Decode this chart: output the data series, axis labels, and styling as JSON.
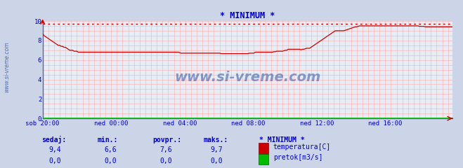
{
  "title": "* MINIMUM *",
  "title_color": "#0000cc",
  "bg_color": "#ccd5e8",
  "plot_bg_color": "#e8edf5",
  "grid_color": "#ffaaaa",
  "x_labels": [
    "sob 20:00",
    "ned 00:00",
    "ned 04:00",
    "ned 08:00",
    "ned 12:00",
    "ned 16:00"
  ],
  "x_ticks_pos": [
    0,
    48,
    96,
    144,
    192,
    240
  ],
  "total_points": 288,
  "ylim": [
    0,
    10
  ],
  "yticks": [
    0,
    2,
    4,
    6,
    8,
    10
  ],
  "line_color": "#cc0000",
  "line_color2": "#00bb00",
  "dashed_line_color": "#cc0000",
  "dashed_line_y": 9.7,
  "watermark": "www.si-vreme.com",
  "watermark_color": "#3355aa",
  "sidebar_text": "www.si-vreme.com",
  "footer_color": "#0000cc",
  "footer_labels": [
    "sedaj:",
    "min.:",
    "povpr.:",
    "maks.:"
  ],
  "footer_values_temp": [
    "9,4",
    "6,6",
    "7,6",
    "9,7"
  ],
  "footer_values_flow": [
    "0,0",
    "0,0",
    "0,0",
    "0,0"
  ],
  "legend_title": "* MINIMUM *",
  "legend_temp": "temperatura[C]",
  "legend_flow": "pretok[m3/s]",
  "temp_data": [
    8.7,
    8.5,
    8.4,
    8.3,
    8.2,
    8.1,
    8.0,
    7.9,
    7.8,
    7.7,
    7.6,
    7.5,
    7.5,
    7.4,
    7.4,
    7.3,
    7.3,
    7.2,
    7.1,
    7.0,
    7.0,
    7.0,
    6.9,
    6.9,
    6.9,
    6.8,
    6.8,
    6.8,
    6.8,
    6.8,
    6.8,
    6.8,
    6.8,
    6.8,
    6.8,
    6.8,
    6.8,
    6.8,
    6.8,
    6.8,
    6.8,
    6.8,
    6.8,
    6.8,
    6.8,
    6.8,
    6.8,
    6.8,
    6.8,
    6.8,
    6.8,
    6.8,
    6.8,
    6.8,
    6.8,
    6.8,
    6.8,
    6.8,
    6.8,
    6.8,
    6.8,
    6.8,
    6.8,
    6.8,
    6.8,
    6.8,
    6.8,
    6.8,
    6.8,
    6.8,
    6.8,
    6.8,
    6.8,
    6.8,
    6.8,
    6.8,
    6.8,
    6.8,
    6.8,
    6.8,
    6.8,
    6.8,
    6.8,
    6.8,
    6.8,
    6.8,
    6.8,
    6.8,
    6.8,
    6.8,
    6.8,
    6.8,
    6.8,
    6.8,
    6.8,
    6.8,
    6.75,
    6.7,
    6.7,
    6.7,
    6.7,
    6.7,
    6.7,
    6.7,
    6.7,
    6.7,
    6.7,
    6.7,
    6.7,
    6.7,
    6.7,
    6.7,
    6.7,
    6.7,
    6.7,
    6.7,
    6.7,
    6.7,
    6.7,
    6.7,
    6.7,
    6.7,
    6.7,
    6.7,
    6.7,
    6.65,
    6.65,
    6.65,
    6.65,
    6.65,
    6.65,
    6.65,
    6.65,
    6.65,
    6.65,
    6.65,
    6.65,
    6.65,
    6.65,
    6.65,
    6.65,
    6.65,
    6.65,
    6.65,
    6.65,
    6.7,
    6.7,
    6.7,
    6.7,
    6.8,
    6.8,
    6.8,
    6.8,
    6.8,
    6.8,
    6.8,
    6.8,
    6.8,
    6.8,
    6.8,
    6.8,
    6.8,
    6.85,
    6.85,
    6.9,
    6.9,
    6.9,
    6.9,
    6.9,
    6.95,
    7.0,
    7.0,
    7.1,
    7.1,
    7.1,
    7.1,
    7.1,
    7.1,
    7.1,
    7.1,
    7.1,
    7.05,
    7.1,
    7.1,
    7.15,
    7.2,
    7.2,
    7.2,
    7.3,
    7.4,
    7.5,
    7.6,
    7.7,
    7.8,
    7.9,
    8.0,
    8.1,
    8.2,
    8.3,
    8.4,
    8.5,
    8.6,
    8.7,
    8.8,
    8.9,
    9.0,
    9.0,
    9.0,
    9.0,
    9.0,
    9.0,
    9.0,
    9.05,
    9.1,
    9.15,
    9.2,
    9.25,
    9.3,
    9.35,
    9.4,
    9.4,
    9.45,
    9.5,
    9.5,
    9.5,
    9.5,
    9.5,
    9.5,
    9.5,
    9.5,
    9.5,
    9.5,
    9.5,
    9.5,
    9.5,
    9.5,
    9.5,
    9.5,
    9.5,
    9.5,
    9.5,
    9.5,
    9.5,
    9.5,
    9.5,
    9.5,
    9.5,
    9.5,
    9.5,
    9.5,
    9.5,
    9.5,
    9.5,
    9.5,
    9.5,
    9.5,
    9.5,
    9.5,
    9.5,
    9.5,
    9.5,
    9.5,
    9.5,
    9.5,
    9.45,
    9.45,
    9.45,
    9.45,
    9.4,
    9.4,
    9.4,
    9.4,
    9.4,
    9.4,
    9.4,
    9.4,
    9.4,
    9.4,
    9.4,
    9.4,
    9.4,
    9.4,
    9.4,
    9.4,
    9.4,
    9.4,
    9.4,
    9.4
  ]
}
